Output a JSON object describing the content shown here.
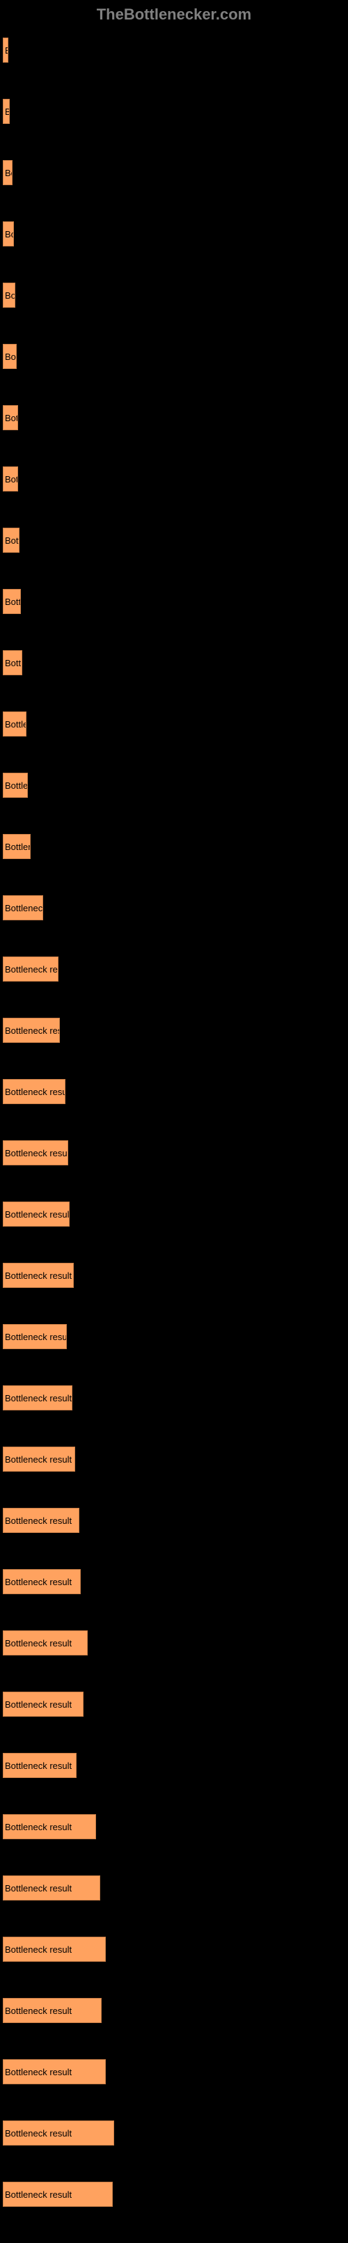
{
  "header": {
    "title": "TheBottlenecker.com"
  },
  "chart": {
    "type": "bar",
    "background_color": "#000000",
    "bar_color": "#ffa25f",
    "bar_border_color": "#cc7f47",
    "label_color": "#000000",
    "label_fontsize": 13,
    "max_width": 492,
    "bars": [
      {
        "label": "Bottleneck result",
        "width": 8
      },
      {
        "label": "Bottleneck result",
        "width": 10
      },
      {
        "label": "Bottleneck result",
        "width": 14
      },
      {
        "label": "Bottleneck result",
        "width": 16
      },
      {
        "label": "Bottleneck result",
        "width": 18
      },
      {
        "label": "Bottleneck result",
        "width": 20
      },
      {
        "label": "Bottleneck result",
        "width": 22
      },
      {
        "label": "Bottleneck result",
        "width": 22
      },
      {
        "label": "Bottleneck result",
        "width": 24
      },
      {
        "label": "Bottleneck result",
        "width": 26
      },
      {
        "label": "Bottleneck result",
        "width": 28
      },
      {
        "label": "Bottleneck result",
        "width": 34
      },
      {
        "label": "Bottleneck result",
        "width": 36
      },
      {
        "label": "Bottleneck result",
        "width": 40
      },
      {
        "label": "Bottleneck result",
        "width": 58
      },
      {
        "label": "Bottleneck result",
        "width": 80
      },
      {
        "label": "Bottleneck result",
        "width": 82
      },
      {
        "label": "Bottleneck result",
        "width": 90
      },
      {
        "label": "Bottleneck result",
        "width": 94
      },
      {
        "label": "Bottleneck result",
        "width": 96
      },
      {
        "label": "Bottleneck result",
        "width": 102
      },
      {
        "label": "Bottleneck result",
        "width": 92
      },
      {
        "label": "Bottleneck result",
        "width": 100
      },
      {
        "label": "Bottleneck result",
        "width": 104
      },
      {
        "label": "Bottleneck result",
        "width": 110
      },
      {
        "label": "Bottleneck result",
        "width": 112
      },
      {
        "label": "Bottleneck result",
        "width": 122
      },
      {
        "label": "Bottleneck result",
        "width": 116
      },
      {
        "label": "Bottleneck result",
        "width": 106
      },
      {
        "label": "Bottleneck result",
        "width": 134
      },
      {
        "label": "Bottleneck result",
        "width": 140
      },
      {
        "label": "Bottleneck result",
        "width": 148
      },
      {
        "label": "Bottleneck result",
        "width": 142
      },
      {
        "label": "Bottleneck result",
        "width": 148
      },
      {
        "label": "Bottleneck result",
        "width": 160
      },
      {
        "label": "Bottleneck result",
        "width": 158
      }
    ]
  }
}
